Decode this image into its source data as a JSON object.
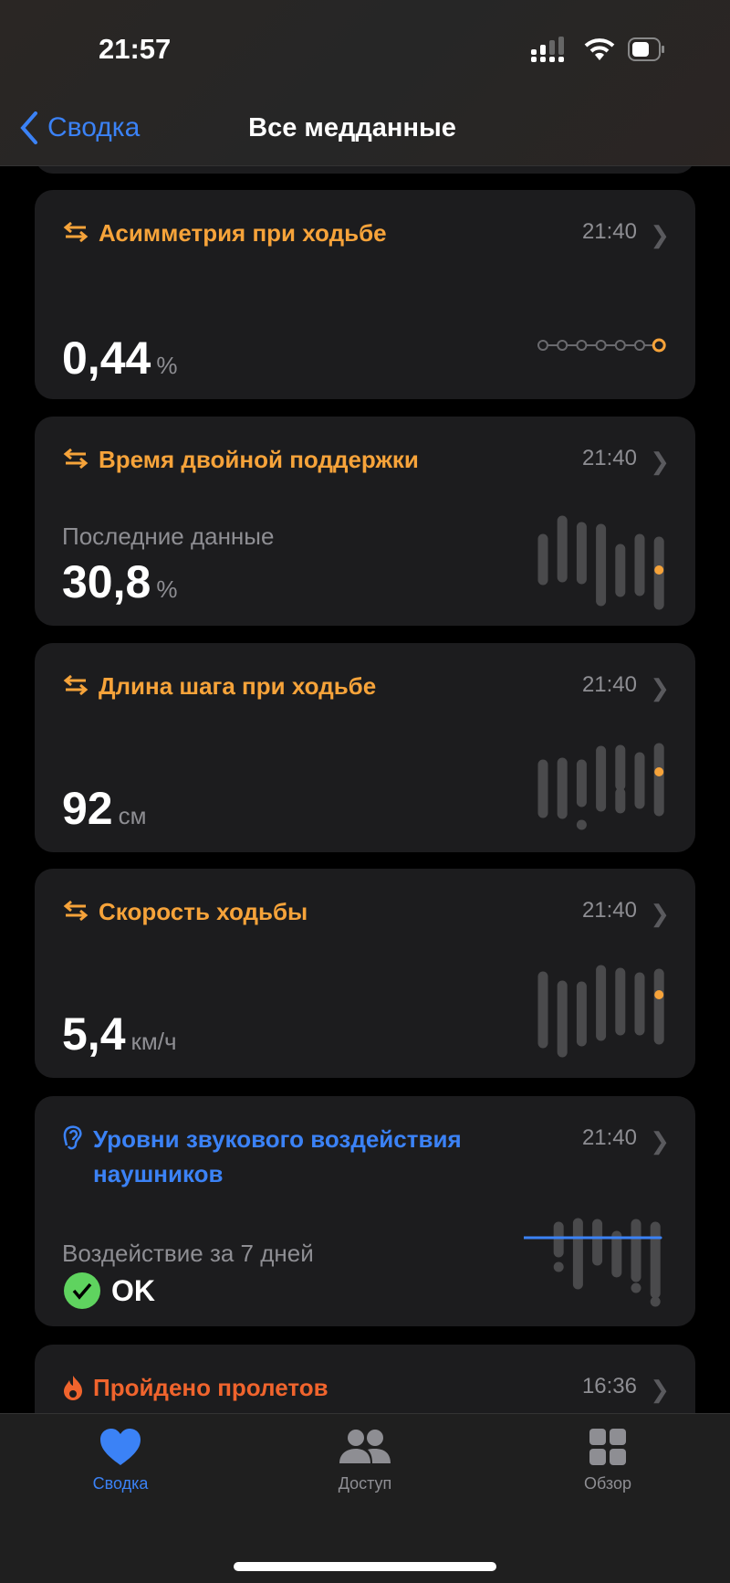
{
  "status_bar": {
    "time": "21:57",
    "battery_percent": 60
  },
  "nav": {
    "back_label": "Сводка",
    "title": "Все медданные"
  },
  "colors": {
    "orange": "#f6a33a",
    "blue": "#3b82f6",
    "red_orange": "#f0642d",
    "green": "#5fd35f",
    "bar": "#4a4a4c"
  },
  "cards": [
    {
      "title": "Асимметрия при ходьбе",
      "time": "21:40",
      "value": "0,44",
      "unit": "%",
      "icon": "walking-arrows-icon"
    },
    {
      "title": "Время двойной поддержки",
      "time": "21:40",
      "subtitle": "Последние данные",
      "value": "30,8",
      "unit": "%",
      "icon": "walking-arrows-icon"
    },
    {
      "title": "Длина шага при ходьбе",
      "time": "21:40",
      "value": "92",
      "unit": "см",
      "icon": "walking-arrows-icon"
    },
    {
      "title": "Скорость ходьбы",
      "time": "21:40",
      "value": "5,4",
      "unit": "км/ч",
      "icon": "walking-arrows-icon"
    },
    {
      "title": "Уровни звукового воздействия наушников",
      "time": "21:40",
      "subtitle": "Воздействие за 7 дней",
      "value": "OK",
      "icon": "ear-icon"
    },
    {
      "title": "Пройдено пролетов",
      "time": "16:36",
      "icon": "flame-icon"
    }
  ],
  "sparklines": {
    "asymmetry_points": 7,
    "double_support": {
      "bars": [
        [
          30,
          75
        ],
        [
          33,
          95
        ],
        [
          31,
          88
        ],
        [
          7,
          86
        ],
        [
          17,
          64
        ],
        [
          18,
          75
        ],
        [
          3,
          72
        ]
      ],
      "latest": 41
    },
    "stride_length": {
      "bars": [
        [
          [
            15,
            68
          ]
        ],
        [
          [
            14,
            70
          ]
        ],
        [
          [
            27,
            68
          ],
          [
            2,
            2
          ]
        ],
        [
          [
            22,
            83
          ]
        ],
        [
          [
            45,
            84
          ],
          [
            20,
            37
          ]
        ],
        [
          [
            25,
            76
          ]
        ],
        [
          [
            17,
            86
          ]
        ]
      ],
      "latest": 60
    },
    "walking_speed": {
      "bars": [
        [
          13,
          86
        ],
        [
          3,
          76
        ],
        [
          15,
          75
        ],
        [
          21,
          93
        ],
        [
          27,
          90
        ],
        [
          27,
          85
        ],
        [
          17,
          89
        ]
      ],
      "latest": 66
    },
    "headphone_audio": {
      "bars": [
        null,
        [
          [
            62,
            90
          ],
          [
            46,
            46
          ]
        ],
        [
          [
            27,
            94
          ]
        ],
        [
          [
            53,
            93
          ]
        ],
        [
          [
            40,
            80
          ]
        ],
        [
          [
            35,
            93
          ],
          [
            23,
            23
          ]
        ],
        [
          [
            17,
            90
          ],
          [
            8,
            8
          ]
        ]
      ],
      "limit": 78
    }
  },
  "tabs": [
    {
      "label": "Сводка",
      "icon": "heart-icon",
      "active": true
    },
    {
      "label": "Доступ",
      "icon": "people-icon"
    },
    {
      "label": "Обзор",
      "icon": "grid-icon"
    }
  ]
}
